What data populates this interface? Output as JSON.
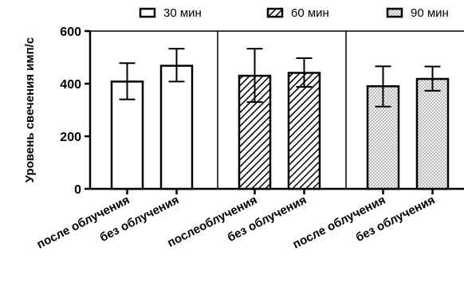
{
  "chart_data": {
    "type": "bar",
    "ylabel": "Уровень свечения имп/с",
    "ylim": [
      0,
      600
    ],
    "yticks": [
      0,
      200,
      400,
      600
    ],
    "grid": false,
    "legend_position": "top",
    "legend": [
      {
        "label": "30 мин",
        "pattern": "empty"
      },
      {
        "label": "60 мин",
        "pattern": "diagonal-hatch"
      },
      {
        "label": "90 мин",
        "pattern": "dotted"
      }
    ],
    "groups": [
      {
        "series": "30 мин",
        "pattern": "empty",
        "bars": [
          {
            "category": "после облучения",
            "value": 408,
            "error_low": 340,
            "error_high": 478
          },
          {
            "category": "без облучения",
            "value": 468,
            "error_low": 408,
            "error_high": 533
          }
        ]
      },
      {
        "series": "60 мин",
        "pattern": "diagonal-hatch",
        "bars": [
          {
            "category": "послеоблучения",
            "value": 430,
            "error_low": 330,
            "error_high": 533
          },
          {
            "category": "без облучения",
            "value": 441,
            "error_low": 388,
            "error_high": 497
          }
        ]
      },
      {
        "series": "90 мин",
        "pattern": "dotted",
        "bars": [
          {
            "category": "после облучения",
            "value": 390,
            "error_low": 313,
            "error_high": 466
          },
          {
            "category": "без облучения",
            "value": 418,
            "error_low": 373,
            "error_high": 465
          }
        ]
      }
    ]
  }
}
